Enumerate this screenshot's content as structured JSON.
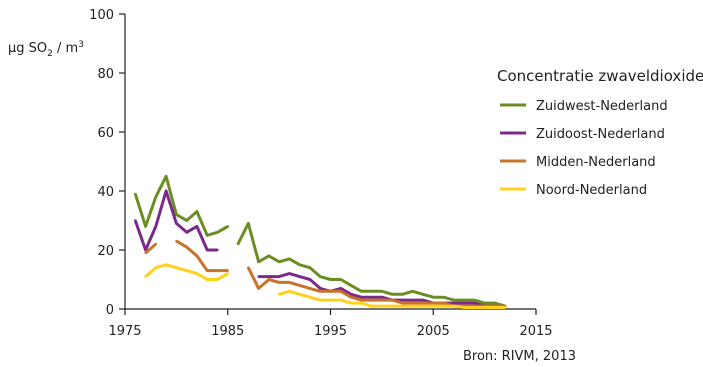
{
  "chart_data": {
    "type": "line",
    "ylabel": {
      "prefix": "μg SO",
      "sub": "2",
      "mid": " / m",
      "sup": "3"
    },
    "source": "Bron: RIVM, 2013",
    "xlim": [
      1975,
      2015
    ],
    "ylim": [
      0,
      100
    ],
    "x_ticks": [
      1975,
      1985,
      1995,
      2005,
      2015
    ],
    "y_ticks": [
      0,
      20,
      40,
      60,
      80,
      100
    ],
    "grid": false,
    "legend": {
      "title": "Concentratie zwaveldioxide",
      "placement": "right"
    },
    "series": [
      {
        "name": "Zuidwest-Nederland",
        "color": "#6b8e23",
        "segments": [
          [
            [
              1976,
              39
            ],
            [
              1977,
              28
            ],
            [
              1978,
              38
            ],
            [
              1979,
              45
            ],
            [
              1980,
              32
            ],
            [
              1981,
              30
            ],
            [
              1982,
              33
            ],
            [
              1983,
              25
            ],
            [
              1984,
              26
            ],
            [
              1985,
              28
            ]
          ],
          [
            [
              1986,
              22
            ],
            [
              1987,
              29
            ],
            [
              1988,
              16
            ],
            [
              1989,
              18
            ],
            [
              1990,
              16
            ],
            [
              1991,
              17
            ],
            [
              1992,
              15
            ],
            [
              1993,
              14
            ],
            [
              1994,
              11
            ],
            [
              1995,
              10
            ],
            [
              1996,
              10
            ],
            [
              1997,
              8
            ],
            [
              1998,
              6
            ],
            [
              1999,
              6
            ],
            [
              2000,
              6
            ],
            [
              2001,
              5
            ],
            [
              2002,
              5
            ],
            [
              2003,
              6
            ],
            [
              2004,
              5
            ],
            [
              2005,
              4
            ],
            [
              2006,
              4
            ],
            [
              2007,
              3
            ],
            [
              2008,
              3
            ],
            [
              2009,
              3
            ],
            [
              2010,
              2
            ],
            [
              2011,
              2
            ],
            [
              2012,
              1
            ]
          ]
        ]
      },
      {
        "name": "Zuidoost-Nederland",
        "color": "#7b2a8a",
        "segments": [
          [
            [
              1976,
              30
            ],
            [
              1977,
              20
            ],
            [
              1978,
              28
            ],
            [
              1979,
              40
            ],
            [
              1980,
              29
            ],
            [
              1981,
              26
            ],
            [
              1982,
              28
            ],
            [
              1983,
              20
            ],
            [
              1984,
              20
            ]
          ],
          [
            [
              1988,
              11
            ],
            [
              1989,
              11
            ],
            [
              1990,
              11
            ],
            [
              1991,
              12
            ],
            [
              1992,
              11
            ],
            [
              1993,
              10
            ],
            [
              1994,
              7
            ],
            [
              1995,
              6
            ],
            [
              1996,
              7
            ],
            [
              1997,
              5
            ],
            [
              1998,
              4
            ],
            [
              1999,
              4
            ],
            [
              2000,
              4
            ],
            [
              2001,
              3
            ],
            [
              2002,
              3
            ],
            [
              2003,
              3
            ],
            [
              2004,
              3
            ],
            [
              2005,
              2
            ],
            [
              2006,
              2
            ],
            [
              2007,
              2
            ],
            [
              2008,
              2
            ],
            [
              2009,
              2
            ],
            [
              2010,
              1
            ],
            [
              2011,
              1
            ],
            [
              2012,
              1
            ]
          ]
        ]
      },
      {
        "name": "Midden-Nederland",
        "color": "#c8732a",
        "segments": [
          [
            [
              1977,
              19
            ],
            [
              1978,
              22
            ]
          ],
          [
            [
              1980,
              23
            ],
            [
              1981,
              21
            ],
            [
              1982,
              18
            ],
            [
              1983,
              13
            ],
            [
              1984,
              13
            ],
            [
              1985,
              13
            ]
          ],
          [
            [
              1987,
              14
            ],
            [
              1988,
              7
            ],
            [
              1989,
              10
            ],
            [
              1990,
              9
            ],
            [
              1991,
              9
            ],
            [
              1992,
              8
            ],
            [
              1993,
              7
            ],
            [
              1994,
              6
            ],
            [
              1995,
              6
            ],
            [
              1996,
              6
            ],
            [
              1997,
              4
            ],
            [
              1998,
              3
            ],
            [
              1999,
              3
            ],
            [
              2000,
              3
            ],
            [
              2001,
              3
            ],
            [
              2002,
              2
            ],
            [
              2003,
              2
            ],
            [
              2004,
              2
            ],
            [
              2005,
              2
            ],
            [
              2006,
              2
            ],
            [
              2007,
              1
            ],
            [
              2008,
              1
            ],
            [
              2009,
              1
            ],
            [
              2010,
              1
            ],
            [
              2011,
              1
            ],
            [
              2012,
              1
            ]
          ]
        ]
      },
      {
        "name": "Noord-Nederland",
        "color": "#ffd11a",
        "segments": [
          [
            [
              1977,
              11
            ],
            [
              1978,
              14
            ],
            [
              1979,
              15
            ],
            [
              1980,
              14
            ],
            [
              1981,
              13
            ],
            [
              1982,
              12
            ],
            [
              1983,
              10
            ],
            [
              1984,
              10
            ],
            [
              1985,
              12
            ]
          ],
          [
            [
              1990,
              5
            ],
            [
              1991,
              6
            ],
            [
              1992,
              5
            ],
            [
              1993,
              4
            ],
            [
              1994,
              3
            ],
            [
              1995,
              3
            ],
            [
              1996,
              3
            ],
            [
              1997,
              2
            ],
            [
              1998,
              2
            ],
            [
              1999,
              1
            ],
            [
              2000,
              1
            ],
            [
              2001,
              1
            ],
            [
              2002,
              1
            ],
            [
              2003,
              1
            ],
            [
              2004,
              1
            ],
            [
              2005,
              1
            ],
            [
              2006,
              1
            ],
            [
              2007,
              1
            ],
            [
              2008,
              0.5
            ],
            [
              2009,
              0.5
            ],
            [
              2010,
              0.5
            ],
            [
              2011,
              0.5
            ],
            [
              2012,
              0.5
            ]
          ]
        ]
      }
    ]
  }
}
